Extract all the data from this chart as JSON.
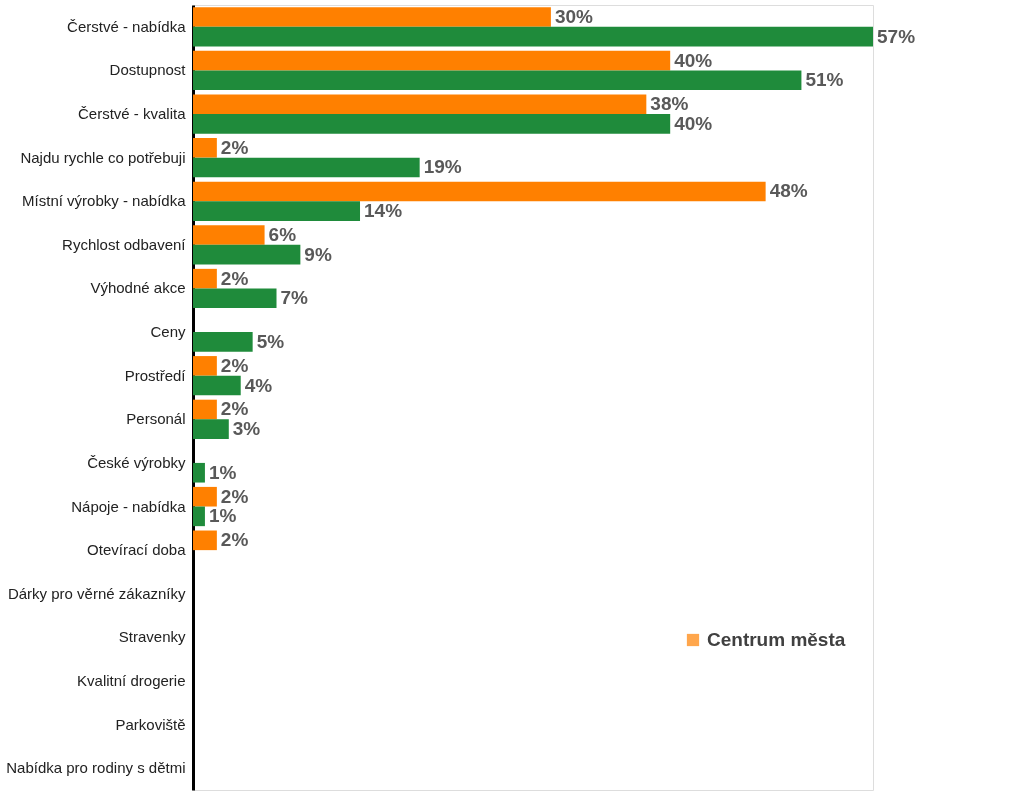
{
  "chart_data": {
    "type": "bar",
    "orientation": "horizontal",
    "categories": [
      "Čerstvé - nabídka",
      "Dostupnost",
      "Čerstvé - kvalita",
      "Najdu rychle co potřebuji",
      "Místní výrobky - nabídka",
      "Rychlost odbavení",
      "Výhodné akce",
      "Ceny",
      "Prostředí",
      "Personál",
      "České výrobky",
      "Nápoje - nabídka",
      "Otevírací doba",
      "Dárky pro věrné zákazníky",
      "Stravenky",
      "Kvalitní drogerie",
      "Parkoviště",
      "Nabídka pro rodiny s dětmi"
    ],
    "series": [
      {
        "name": "Centrum města",
        "color": "#ff8000",
        "values": [
          30,
          40,
          38,
          2,
          48,
          6,
          2,
          null,
          2,
          2,
          null,
          2,
          2,
          null,
          null,
          null,
          null,
          null
        ],
        "value_labels": [
          "30%",
          "40%",
          "38%",
          "2%",
          "48%",
          "6%",
          "2%",
          null,
          "2%",
          "2%",
          null,
          "2%",
          "2%",
          null,
          null,
          null,
          null,
          null
        ]
      },
      {
        "color": "#1f8b3b",
        "values": [
          57,
          51,
          40,
          19,
          14,
          9,
          7,
          5,
          4,
          3,
          1,
          1,
          null,
          null,
          null,
          null,
          null,
          null
        ],
        "value_labels": [
          "57%",
          "51%",
          "40%",
          "19%",
          "14%",
          "9%",
          "7%",
          "5%",
          "4%",
          "3%",
          "1%",
          "1%",
          null,
          null,
          null,
          null,
          null,
          null
        ]
      }
    ],
    "legend": "bottom right"
  }
}
